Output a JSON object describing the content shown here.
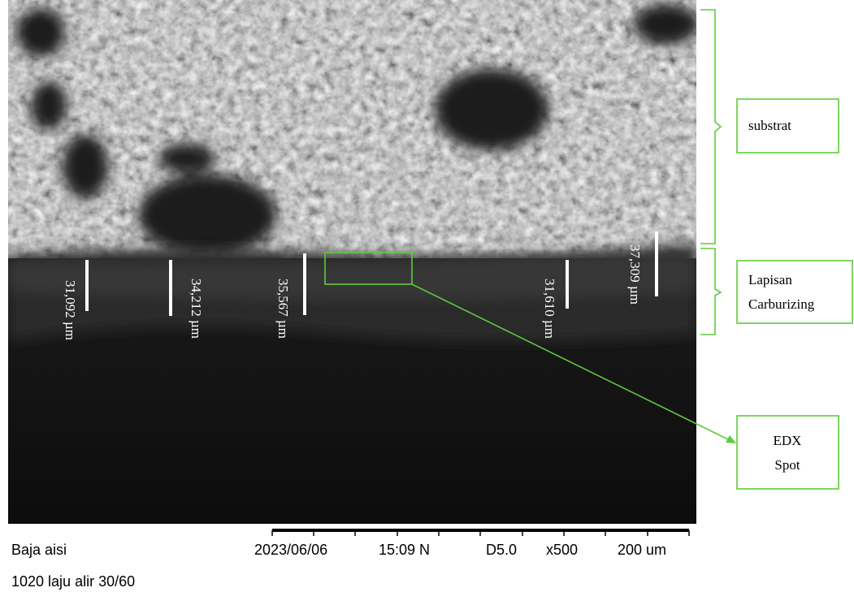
{
  "measurements": [
    "31,092 µm",
    "34,212 µm",
    "35,567 µm",
    "31,610 µm",
    "37,309 µm"
  ],
  "annotations": {
    "substrate": "substrat",
    "carburizing": [
      "Lapisan",
      "Carburizing"
    ],
    "edx": [
      "EDX",
      "Spot"
    ]
  },
  "footer": {
    "sample_line_1": "Baja aisi",
    "date": "2023/06/06",
    "time": "15:09 N",
    "detector": "D5.0",
    "magnification": "x500",
    "scale": "200 um",
    "sample_line_2": "1020 laju alir 30/60"
  }
}
